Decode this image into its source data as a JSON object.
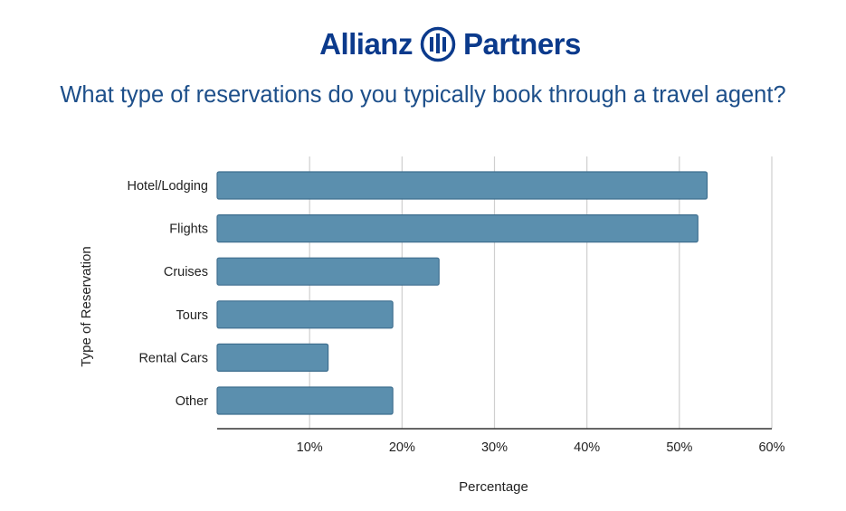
{
  "brand": {
    "name_left": "Allianz",
    "name_right": "Partners",
    "color": "#0b3a8c",
    "icon": "allianz-eagle-icon"
  },
  "chart_data": {
    "type": "bar",
    "orientation": "horizontal",
    "title": "What type of reservations do you typically book through a travel agent?",
    "xlabel": "Percentage",
    "ylabel": "Type of Reservation",
    "categories": [
      "Hotel/Lodging",
      "Flights",
      "Cruises",
      "Tours",
      "Rental Cars",
      "Other"
    ],
    "values": [
      53,
      52,
      24,
      19,
      12,
      19
    ],
    "xlim": [
      0,
      60
    ],
    "xticks": [
      "10%",
      "20%",
      "30%",
      "40%",
      "50%",
      "60%"
    ],
    "grid": "vertical",
    "bar_color": "#5b8fae",
    "bar_edge_color": "#3f6f8f"
  }
}
